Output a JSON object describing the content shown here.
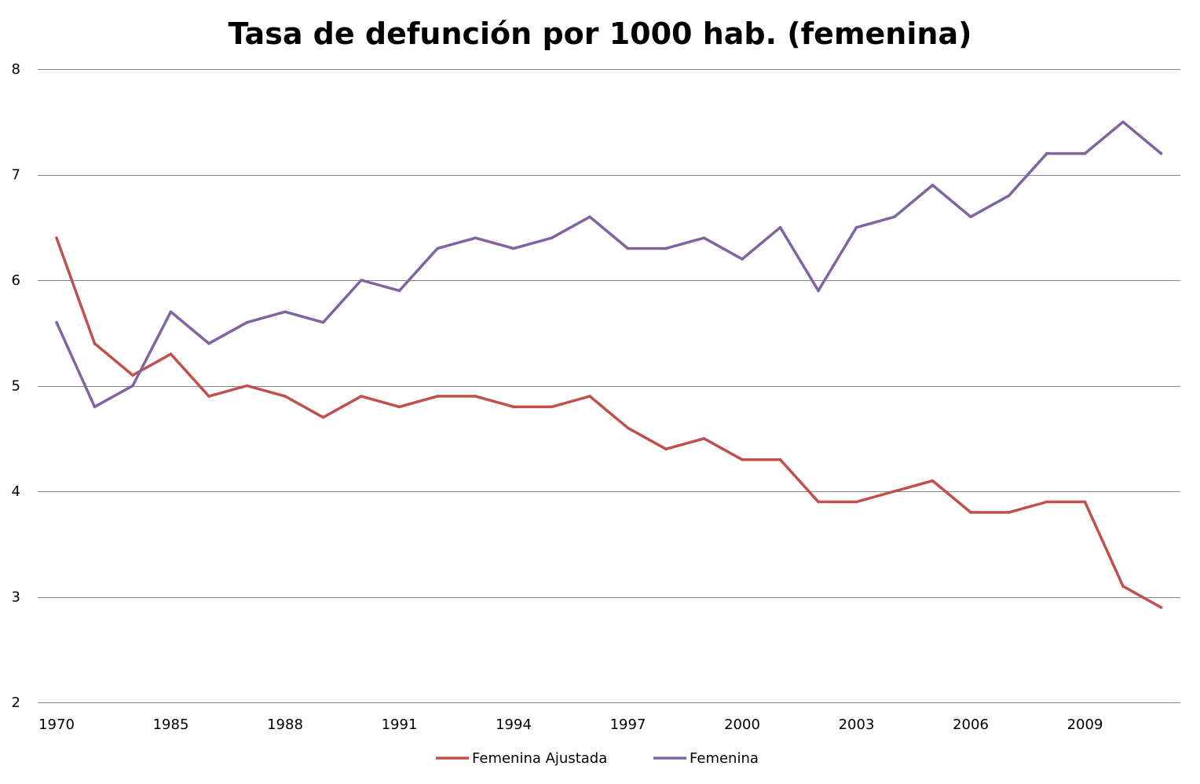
{
  "chart_data": {
    "type": "line",
    "title": "Tasa de defunción por 1000 hab. (femenina)",
    "xlabel": "",
    "ylabel": "",
    "ylim": [
      2,
      8
    ],
    "yticks": [
      2,
      3,
      4,
      5,
      6,
      7,
      8
    ],
    "grid": true,
    "legend_position": "bottom",
    "categories": [
      "1970",
      "",
      "",
      "1985",
      "",
      "",
      "1988",
      "",
      "",
      "1991",
      "",
      "",
      "1994",
      "",
      "",
      "1997",
      "",
      "",
      "2000",
      "",
      "",
      "2003",
      "",
      "",
      "2006",
      "",
      "",
      "2009",
      "",
      ""
    ],
    "series": [
      {
        "name": "Femenina Ajustada",
        "color": "#C0504D",
        "values": [
          6.4,
          5.4,
          5.1,
          5.3,
          4.9,
          5.0,
          4.9,
          4.7,
          4.9,
          4.8,
          4.9,
          4.9,
          4.8,
          4.8,
          4.9,
          4.6,
          4.4,
          4.5,
          4.3,
          4.3,
          3.9,
          3.9,
          4.0,
          4.1,
          3.8,
          3.8,
          3.9,
          3.9,
          3.1,
          2.9
        ]
      },
      {
        "name": "Femenina",
        "color": "#8064A2",
        "values": [
          5.6,
          4.8,
          5.0,
          5.7,
          5.4,
          5.6,
          5.7,
          5.6,
          6.0,
          5.9,
          6.3,
          6.4,
          6.3,
          6.4,
          6.6,
          6.3,
          6.3,
          6.4,
          6.2,
          6.5,
          5.9,
          6.5,
          6.6,
          6.9,
          6.6,
          6.8,
          7.2,
          7.2,
          7.5,
          7.2
        ]
      }
    ],
    "gridline_color": "#868686"
  }
}
